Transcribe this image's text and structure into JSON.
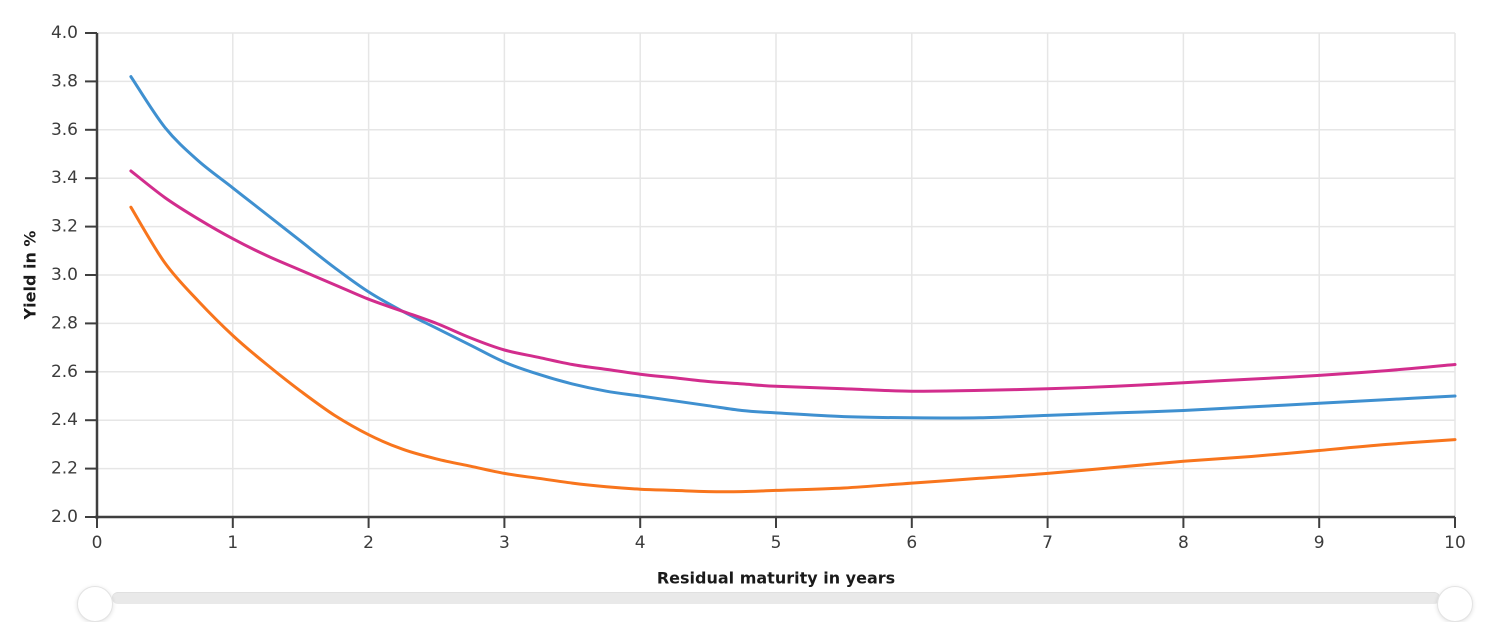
{
  "chart_data": {
    "type": "line",
    "title": "",
    "xlabel": "Residual maturity in years",
    "ylabel": "Yield in %",
    "xlim": [
      0,
      10
    ],
    "ylim": [
      2.0,
      4.0
    ],
    "x_ticks": [
      0,
      1,
      2,
      3,
      4,
      5,
      6,
      7,
      8,
      9,
      10
    ],
    "y_ticks": [
      "2.0",
      "2.2",
      "2.4",
      "2.6",
      "2.8",
      "3.0",
      "3.2",
      "3.4",
      "3.6",
      "3.8",
      "4.0"
    ],
    "grid": true,
    "legend": false,
    "grid_color": "#e6e6e6",
    "axis_color": "#3f3f3f",
    "tick_label_color": "#3c3c3c",
    "x": [
      0.25,
      0.5,
      0.75,
      1,
      1.25,
      1.5,
      1.75,
      2,
      2.25,
      2.5,
      2.75,
      3,
      3.25,
      3.5,
      3.75,
      4,
      4.25,
      4.5,
      4.75,
      5,
      5.5,
      6,
      6.5,
      7,
      7.5,
      8,
      8.5,
      9,
      9.5,
      10
    ],
    "series": [
      {
        "name": "blue-curve",
        "color": "#3f90d0",
        "values": [
          3.82,
          3.61,
          3.47,
          3.36,
          3.25,
          3.14,
          3.03,
          2.93,
          2.85,
          2.78,
          2.71,
          2.64,
          2.59,
          2.55,
          2.52,
          2.5,
          2.48,
          2.46,
          2.44,
          2.43,
          2.415,
          2.41,
          2.41,
          2.42,
          2.43,
          2.44,
          2.455,
          2.47,
          2.485,
          2.5
        ]
      },
      {
        "name": "pink-curve",
        "color": "#d22d8d",
        "values": [
          3.43,
          3.32,
          3.23,
          3.15,
          3.08,
          3.02,
          2.96,
          2.9,
          2.85,
          2.8,
          2.74,
          2.69,
          2.66,
          2.63,
          2.61,
          2.59,
          2.575,
          2.56,
          2.55,
          2.54,
          2.53,
          2.52,
          2.523,
          2.53,
          2.54,
          2.555,
          2.57,
          2.585,
          2.605,
          2.63
        ]
      },
      {
        "name": "orange-curve",
        "color": "#f8751d",
        "values": [
          3.28,
          3.05,
          2.89,
          2.75,
          2.63,
          2.52,
          2.42,
          2.34,
          2.28,
          2.24,
          2.21,
          2.18,
          2.16,
          2.14,
          2.125,
          2.115,
          2.11,
          2.105,
          2.105,
          2.11,
          2.12,
          2.14,
          2.16,
          2.18,
          2.205,
          2.23,
          2.25,
          2.275,
          2.3,
          2.32
        ]
      }
    ]
  },
  "slider": {
    "track_color": "#e9e9e9",
    "handle_color": "#ffffff"
  }
}
